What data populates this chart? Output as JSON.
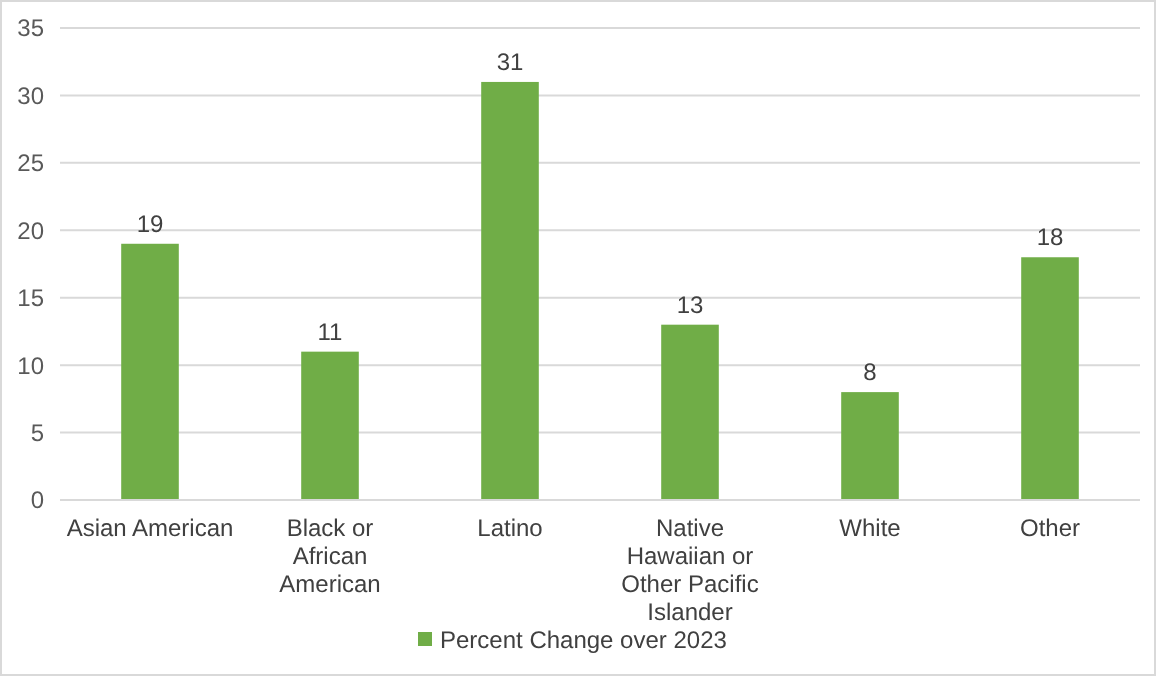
{
  "chart_data": {
    "type": "bar",
    "categories": [
      "Asian American",
      "Black or African American",
      "Latino",
      "Native Hawaiian or Other Pacific Islander",
      "White",
      "Other"
    ],
    "series": [
      {
        "name": "Percent Change over 2023",
        "color": "#70ad47",
        "values": [
          19,
          11,
          31,
          13,
          8,
          18
        ]
      }
    ],
    "ylim": [
      0,
      35
    ],
    "yticks": [
      0,
      5,
      10,
      15,
      20,
      25,
      30,
      35
    ],
    "grid": "y",
    "data_labels": true,
    "legend": "bottom"
  }
}
